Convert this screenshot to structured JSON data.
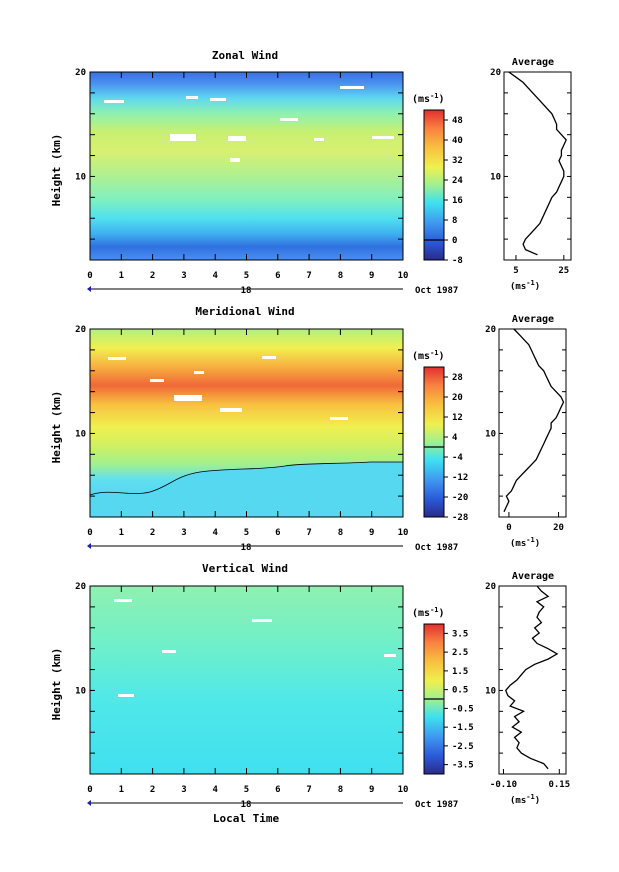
{
  "figure": {
    "x_axis_label": "Local Time",
    "date_marker": "18",
    "date_label": "Oct 1987",
    "avg_unit_label": "(ms",
    "avg_unit_exp": "-1",
    "avg_unit_close": ")"
  },
  "chart_data": [
    {
      "type": "heatmap",
      "title": "Zonal Wind",
      "ylabel": "Height (km)",
      "xlabel": "Local Time",
      "x_ticks": [
        "0",
        "1",
        "2",
        "3",
        "4",
        "5",
        "6",
        "7",
        "8",
        "9",
        "10"
      ],
      "y_ticks": [
        "10",
        "20"
      ],
      "xlim": [
        0,
        10
      ],
      "ylim": [
        2,
        20
      ],
      "colorbar": {
        "unit": "(ms",
        "unit_exp": "-1",
        "tick_labels": [
          "48",
          "40",
          "32",
          "24",
          "16",
          "8",
          "0",
          "-8"
        ],
        "ticks": [
          48,
          40,
          32,
          24,
          16,
          8,
          0,
          -8
        ],
        "range": [
          -8,
          52
        ]
      },
      "average": {
        "title": "Average",
        "x_ticks": [
          "5",
          "25"
        ],
        "x_tick_values": [
          5,
          25
        ],
        "xlim": [
          0,
          28
        ],
        "y_ticks": [
          "10",
          "20"
        ],
        "ylim": [
          2,
          20
        ],
        "profile": {
          "heights": [
            2.5,
            3,
            3.5,
            4,
            4.5,
            5,
            5.5,
            6,
            6.5,
            7,
            7.5,
            8,
            8.5,
            9,
            9.5,
            10,
            10.5,
            11,
            11.5,
            12,
            12.5,
            13,
            13.5,
            14,
            14.5,
            15,
            15.5,
            16,
            16.5,
            17,
            17.5,
            18,
            18.5,
            19,
            19.5,
            20
          ],
          "values": [
            14,
            9,
            8,
            9,
            11,
            13,
            15,
            16,
            17,
            18,
            19,
            20,
            22,
            23,
            24,
            25,
            25,
            24,
            23,
            24,
            24,
            25,
            26,
            24,
            22,
            22,
            21,
            20,
            18,
            16,
            14,
            12,
            10,
            8,
            5,
            2
          ]
        }
      }
    },
    {
      "type": "heatmap",
      "title": "Meridional Wind",
      "ylabel": "Height (km)",
      "xlabel": "Local Time",
      "x_ticks": [
        "0",
        "1",
        "2",
        "3",
        "4",
        "5",
        "6",
        "7",
        "8",
        "9",
        "10"
      ],
      "y_ticks": [
        "10",
        "20"
      ],
      "xlim": [
        0,
        10
      ],
      "ylim": [
        2,
        20
      ],
      "colorbar": {
        "unit": "(ms",
        "unit_exp": "-1",
        "tick_labels": [
          "28",
          "20",
          "12",
          "4",
          "-4",
          "-12",
          "-20",
          "-28"
        ],
        "ticks": [
          28,
          20,
          12,
          4,
          -4,
          -12,
          -20,
          -28
        ],
        "range": [
          -28,
          32
        ]
      },
      "average": {
        "title": "Average",
        "x_ticks": [
          "0",
          "20"
        ],
        "x_tick_values": [
          0,
          20
        ],
        "xlim": [
          -4,
          23
        ],
        "y_ticks": [
          "10",
          "20"
        ],
        "ylim": [
          2,
          20
        ],
        "profile": {
          "heights": [
            2.5,
            3,
            3.5,
            4,
            4.5,
            5,
            5.5,
            6,
            6.5,
            7,
            7.5,
            8,
            8.5,
            9,
            9.5,
            10,
            10.5,
            11,
            11.5,
            12,
            12.5,
            13,
            13.5,
            14,
            14.5,
            15,
            15.5,
            16,
            16.5,
            17,
            17.5,
            18,
            18.5,
            19,
            19.5,
            20
          ],
          "values": [
            -2,
            -1,
            0,
            -1,
            1,
            2,
            3,
            5,
            7,
            9,
            11,
            12,
            13,
            14,
            15,
            16,
            17,
            17,
            19,
            20,
            21,
            22,
            21,
            19,
            17,
            16,
            15,
            14,
            12,
            11,
            10,
            9,
            8,
            6,
            4,
            2
          ]
        }
      }
    },
    {
      "type": "heatmap",
      "title": "Vertical Wind",
      "ylabel": "Height (km)",
      "xlabel": "Local Time",
      "x_ticks": [
        "0",
        "1",
        "2",
        "3",
        "4",
        "5",
        "6",
        "7",
        "8",
        "9",
        "10"
      ],
      "y_ticks": [
        "10",
        "20"
      ],
      "xlim": [
        0,
        10
      ],
      "ylim": [
        2,
        20
      ],
      "colorbar": {
        "unit": "(ms",
        "unit_exp": "-1",
        "tick_labels": [
          "3.5",
          "2.5",
          "1.5",
          "0.5",
          "-0.5",
          "-1.5",
          "-2.5",
          "-3.5"
        ],
        "ticks": [
          3.5,
          2.5,
          1.5,
          0.5,
          -0.5,
          -1.5,
          -2.5,
          -3.5
        ],
        "range": [
          -4,
          4
        ]
      },
      "average": {
        "title": "Average",
        "x_ticks": [
          "-0.10",
          "0.15"
        ],
        "x_tick_values": [
          -0.1,
          0.15
        ],
        "xlim": [
          -0.12,
          0.18
        ],
        "y_ticks": [
          "10",
          "20"
        ],
        "ylim": [
          2,
          20
        ],
        "profile": {
          "heights": [
            2.5,
            3,
            3.5,
            4,
            4.5,
            5,
            5.5,
            6,
            6.5,
            7,
            7.5,
            8,
            8.5,
            9,
            9.5,
            10,
            10.5,
            11,
            11.5,
            12,
            12.5,
            13,
            13.5,
            14,
            14.5,
            15,
            15.5,
            16,
            16.5,
            17,
            17.5,
            18,
            18.5,
            19,
            19.5,
            20
          ],
          "values": [
            0.1,
            0.08,
            0.02,
            -0.02,
            -0.04,
            -0.03,
            -0.05,
            -0.02,
            -0.06,
            -0.03,
            -0.05,
            -0.01,
            -0.07,
            -0.05,
            -0.08,
            -0.09,
            -0.07,
            -0.04,
            -0.02,
            0.0,
            0.04,
            0.1,
            0.14,
            0.1,
            0.05,
            0.03,
            0.06,
            0.04,
            0.07,
            0.05,
            0.06,
            0.08,
            0.05,
            0.1,
            0.07,
            0.05
          ]
        }
      }
    }
  ]
}
